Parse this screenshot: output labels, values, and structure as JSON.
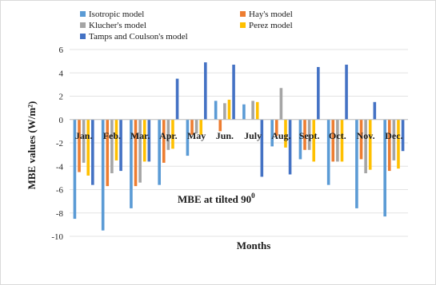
{
  "chart_data": {
    "type": "bar",
    "title": "",
    "annotation": "MBE at tilted 90",
    "annotation_superscript": "0",
    "xlabel": "Months",
    "ylabel": "MBE values (W/m²)",
    "ylim": [
      -10,
      6
    ],
    "yticks": [
      -10,
      -8,
      -6,
      -4,
      -2,
      0,
      2,
      4,
      6
    ],
    "grid": true,
    "legend_position": "top",
    "categories": [
      "Jan.",
      "Feb.",
      "Mar.",
      "Apr.",
      "May",
      "Jun.",
      "July",
      "Aug.",
      "Sept.",
      "Oct.",
      "Nov.",
      "Dec."
    ],
    "series": [
      {
        "name": "Isotropic model",
        "color": "#5B9BD5",
        "values": [
          -8.5,
          -9.5,
          -7.6,
          -5.6,
          -3.1,
          1.6,
          1.3,
          -2.3,
          -3.4,
          -5.6,
          -7.6,
          -8.3
        ]
      },
      {
        "name": "Hay's model",
        "color": "#ED7D31",
        "values": [
          -4.5,
          -5.7,
          -5.7,
          -3.7,
          -1.3,
          -1.0,
          0.0,
          -1.4,
          -2.6,
          -3.6,
          -3.4,
          -4.4
        ]
      },
      {
        "name": "Klucher's model",
        "color": "#A5A5A5",
        "values": [
          -3.7,
          -4.6,
          -5.4,
          -2.6,
          -1.2,
          1.4,
          1.6,
          2.7,
          -2.6,
          -3.6,
          -4.6,
          -3.5
        ]
      },
      {
        "name": "Perez  model",
        "color": "#FFC000",
        "values": [
          -4.8,
          -3.5,
          -3.6,
          -2.5,
          -1.3,
          1.7,
          1.5,
          -2.4,
          -3.6,
          -3.6,
          -4.3,
          -4.2
        ]
      },
      {
        "name": "Tamps and Coulson's model",
        "color": "#4472C4",
        "values": [
          -5.6,
          -4.4,
          -3.6,
          3.5,
          4.9,
          4.7,
          -4.9,
          -4.7,
          4.5,
          4.7,
          1.5,
          -2.7
        ]
      }
    ]
  }
}
